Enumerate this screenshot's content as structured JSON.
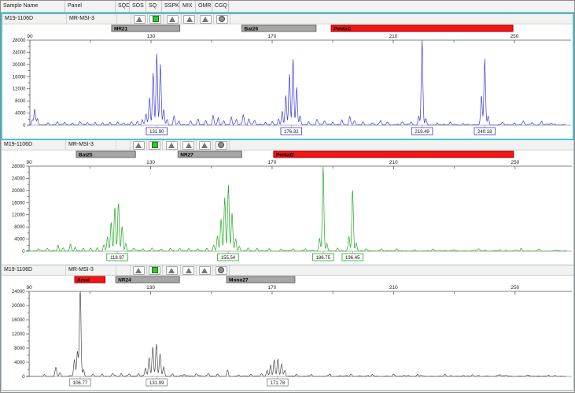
{
  "header": {
    "columns": [
      "Sample Name",
      "Panel",
      "SQD",
      "SOS",
      "SQ",
      "SSPK",
      "MIX",
      "OMR",
      "CGQ"
    ]
  },
  "panels": [
    {
      "sample_name": "M19-1106D",
      "panel_name": "MR-MSI-3",
      "selected": true,
      "flags": [
        {
          "column": "SQD",
          "icon": "blank"
        },
        {
          "column": "SOS",
          "icon": "triangle-icon"
        },
        {
          "column": "SQ",
          "icon": "green-square-icon"
        },
        {
          "column": "SSPK",
          "icon": "triangle-icon"
        },
        {
          "column": "MIX",
          "icon": "triangle-icon"
        },
        {
          "column": "OMR",
          "icon": "triangle-icon"
        },
        {
          "column": "CGQ",
          "icon": "circle-icon"
        }
      ]
    },
    {
      "sample_name": "M19-1106D",
      "panel_name": "MR-MSI-3",
      "selected": false,
      "flags": [
        {
          "column": "SQD",
          "icon": "blank"
        },
        {
          "column": "SOS",
          "icon": "triangle-icon"
        },
        {
          "column": "SQ",
          "icon": "green-square-icon"
        },
        {
          "column": "SSPK",
          "icon": "triangle-icon"
        },
        {
          "column": "MIX",
          "icon": "triangle-icon"
        },
        {
          "column": "OMR",
          "icon": "triangle-icon"
        },
        {
          "column": "CGQ",
          "icon": "circle-icon"
        }
      ]
    },
    {
      "sample_name": "M19-1106D",
      "panel_name": "MR-MSI-3",
      "selected": false,
      "flags": [
        {
          "column": "SQD",
          "icon": "blank"
        },
        {
          "column": "SOS",
          "icon": "triangle-icon"
        },
        {
          "column": "SQ",
          "icon": "green-square-icon"
        },
        {
          "column": "SSPK",
          "icon": "triangle-icon"
        },
        {
          "column": "MIX",
          "icon": "triangle-icon"
        },
        {
          "column": "OMR",
          "icon": "triangle-icon"
        },
        {
          "column": "CGQ",
          "icon": "circle-icon"
        }
      ]
    }
  ],
  "chart_data": [
    {
      "type": "line",
      "trace_color": "#3a3ad0",
      "label_box_color": "#3a3ad0",
      "x_ticks": [
        90,
        130,
        170,
        210,
        250
      ],
      "x_minor_ticks": [
        110,
        150,
        190,
        230
      ],
      "x_range": [
        88,
        268
      ],
      "y_max": 28000,
      "y_tick_step": 4000,
      "markers": [
        {
          "name": "MR21",
          "from": 117,
          "to": 139.5,
          "color": "#a6a6a6",
          "border": "#6b6b6b"
        },
        {
          "name": "Bat26",
          "from": 160,
          "to": 184.5,
          "color": "#a6a6a6",
          "border": "#6b6b6b"
        },
        {
          "name": "PentaC",
          "from": 189.5,
          "to": 249.5,
          "color": "#f21515",
          "border": "#a00000"
        }
      ],
      "called_peaks": [
        {
          "size_label": "131.90",
          "bp": 131.9
        },
        {
          "size_label": "176.32",
          "bp": 176.3
        },
        {
          "size_label": "219.49",
          "bp": 219.5
        },
        {
          "size_label": "240.18",
          "bp": 240.2
        }
      ],
      "noise": [
        [
          89,
          267,
          450
        ]
      ],
      "spikes": [
        [
          90.8,
          1800
        ],
        [
          91.6,
          5200
        ],
        [
          92.5,
          2100
        ],
        [
          96,
          800
        ],
        [
          99,
          900
        ],
        [
          101.5,
          950
        ],
        [
          104,
          800
        ],
        [
          106.5,
          1050
        ],
        [
          109,
          850
        ],
        [
          111.5,
          950
        ],
        [
          114,
          800
        ],
        [
          116.5,
          850
        ],
        [
          119,
          950
        ],
        [
          121,
          800
        ],
        [
          123.5,
          1000
        ],
        [
          125.5,
          1200
        ],
        [
          127.1,
          1600
        ],
        [
          128.3,
          3600
        ],
        [
          129.5,
          9000
        ],
        [
          130.7,
          17000
        ],
        [
          131.9,
          23500
        ],
        [
          133.1,
          20000
        ],
        [
          134.2,
          5200
        ],
        [
          135.3,
          1900
        ],
        [
          137.6,
          2900
        ],
        [
          139.2,
          1300
        ],
        [
          143,
          1300
        ],
        [
          145.5,
          1800
        ],
        [
          148,
          1500
        ],
        [
          150.5,
          3200
        ],
        [
          152.2,
          2300
        ],
        [
          154,
          1500
        ],
        [
          156.5,
          2700
        ],
        [
          158.2,
          1600
        ],
        [
          160.5,
          3100
        ],
        [
          162.3,
          1700
        ],
        [
          164.2,
          1300
        ],
        [
          167.8,
          1000
        ],
        [
          170,
          1200
        ],
        [
          172.1,
          1700
        ],
        [
          173.3,
          4600
        ],
        [
          174.5,
          9800
        ],
        [
          175.7,
          16800
        ],
        [
          176.9,
          21700
        ],
        [
          178.1,
          12200
        ],
        [
          179.2,
          3100
        ],
        [
          182,
          1000
        ],
        [
          184.8,
          1500
        ],
        [
          187.3,
          1100
        ],
        [
          190,
          900
        ],
        [
          193,
          1700
        ],
        [
          195.6,
          2500
        ],
        [
          197.2,
          1300
        ],
        [
          200,
          1000
        ],
        [
          203,
          800
        ],
        [
          205.8,
          1600
        ],
        [
          208,
          900
        ],
        [
          213,
          700
        ],
        [
          216,
          800
        ],
        [
          218.4,
          2600
        ],
        [
          219.5,
          27600
        ],
        [
          220.7,
          2100
        ],
        [
          224.5,
          700
        ],
        [
          228.8,
          900
        ],
        [
          233,
          600
        ],
        [
          239.1,
          9600
        ],
        [
          240.2,
          21800
        ],
        [
          241.3,
          2600
        ],
        [
          246,
          600
        ],
        [
          250,
          800
        ],
        [
          253,
          1000
        ],
        [
          256,
          700
        ],
        [
          259,
          900
        ],
        [
          262,
          600
        ]
      ]
    },
    {
      "type": "line",
      "trace_color": "#21a821",
      "label_box_color": "#21a821",
      "x_ticks": [
        90,
        130,
        170,
        210,
        250
      ],
      "x_minor_ticks": [
        110,
        150,
        190,
        230
      ],
      "x_range": [
        88,
        268
      ],
      "y_max": 28000,
      "y_tick_step": 4000,
      "markers": [
        {
          "name": "Bat25",
          "from": 105.5,
          "to": 125,
          "color": "#a6a6a6",
          "border": "#6b6b6b"
        },
        {
          "name": "NR27",
          "from": 139,
          "to": 160,
          "color": "#a6a6a6",
          "border": "#6b6b6b"
        },
        {
          "name": "PentaD",
          "from": 170.5,
          "to": 249.5,
          "color": "#f21515",
          "border": "#a00000"
        }
      ],
      "called_peaks": [
        {
          "size_label": "118.97",
          "bp": 119.0
        },
        {
          "size_label": "155.54",
          "bp": 155.5
        },
        {
          "size_label": "186.75",
          "bp": 186.8
        },
        {
          "size_label": "196.45",
          "bp": 196.5
        }
      ],
      "noise": [
        [
          89,
          267,
          350
        ]
      ],
      "spikes": [
        [
          93,
          700
        ],
        [
          96,
          900
        ],
        [
          99.5,
          2000
        ],
        [
          101.2,
          1100
        ],
        [
          103.6,
          2400
        ],
        [
          105.2,
          1200
        ],
        [
          107.8,
          900
        ],
        [
          110.2,
          1000
        ],
        [
          112.4,
          1100
        ],
        [
          114.6,
          1900
        ],
        [
          115.8,
          4600
        ],
        [
          117.0,
          9600
        ],
        [
          118.2,
          14600
        ],
        [
          119.4,
          15800
        ],
        [
          120.6,
          8100
        ],
        [
          121.8,
          2600
        ],
        [
          124.5,
          1000
        ],
        [
          127.5,
          800
        ],
        [
          130.5,
          900
        ],
        [
          133.5,
          700
        ],
        [
          136.5,
          800
        ],
        [
          139.5,
          900
        ],
        [
          142.5,
          700
        ],
        [
          145.5,
          800
        ],
        [
          148.5,
          1000
        ],
        [
          150.8,
          1900
        ],
        [
          152.0,
          4900
        ],
        [
          153.2,
          10600
        ],
        [
          154.4,
          17600
        ],
        [
          155.6,
          21800
        ],
        [
          156.8,
          12600
        ],
        [
          158.0,
          4100
        ],
        [
          159.2,
          1600
        ],
        [
          162,
          800
        ],
        [
          165,
          700
        ],
        [
          169,
          800
        ],
        [
          173,
          600
        ],
        [
          177,
          700
        ],
        [
          181,
          800
        ],
        [
          185.6,
          4300
        ],
        [
          186.8,
          27900
        ],
        [
          188.0,
          2300
        ],
        [
          191.5,
          800
        ],
        [
          195.3,
          4900
        ],
        [
          196.5,
          20400
        ],
        [
          197.7,
          2700
        ],
        [
          201,
          600
        ],
        [
          206,
          700
        ],
        [
          211,
          600
        ],
        [
          217,
          500
        ],
        [
          223,
          600
        ],
        [
          230,
          500
        ],
        [
          238,
          600
        ],
        [
          245,
          500
        ],
        [
          252,
          600
        ],
        [
          258,
          500
        ]
      ]
    },
    {
      "type": "line",
      "trace_color": "#4a4a4a",
      "label_box_color": "#808080",
      "x_ticks": [
        90,
        130,
        170,
        210,
        250
      ],
      "x_minor_ticks": [
        110,
        150,
        190,
        230
      ],
      "x_range": [
        88,
        268
      ],
      "y_max": 24000,
      "y_tick_step": 4000,
      "markers": [
        {
          "name": "Amel",
          "from": 105,
          "to": 115,
          "color": "#f21515",
          "border": "#a00000"
        },
        {
          "name": "NR24",
          "from": 118.5,
          "to": 139.5,
          "color": "#a6a6a6",
          "border": "#6b6b6b"
        },
        {
          "name": "Mono27",
          "from": 155,
          "to": 177.5,
          "color": "#a6a6a6",
          "border": "#6b6b6b"
        }
      ],
      "called_peaks": [
        {
          "size_label": "106.77",
          "bp": 106.8
        },
        {
          "size_label": "131.99",
          "bp": 132.0
        },
        {
          "size_label": "171.78",
          "bp": 171.8
        }
      ],
      "noise": [
        [
          89,
          267,
          280
        ]
      ],
      "spikes": [
        [
          95,
          550
        ],
        [
          98.8,
          2400
        ],
        [
          100.2,
          800
        ],
        [
          104.9,
          4800
        ],
        [
          105.9,
          6900
        ],
        [
          106.8,
          24800
        ],
        [
          107.9,
          1900
        ],
        [
          111,
          550
        ],
        [
          114,
          650
        ],
        [
          117.5,
          750
        ],
        [
          120.3,
          850
        ],
        [
          123,
          650
        ],
        [
          126,
          750
        ],
        [
          128.3,
          2200
        ],
        [
          129.5,
          5300
        ],
        [
          130.7,
          8200
        ],
        [
          131.9,
          8900
        ],
        [
          133.1,
          6300
        ],
        [
          134.3,
          2700
        ],
        [
          137.2,
          750
        ],
        [
          141,
          550
        ],
        [
          145,
          650
        ],
        [
          149,
          550
        ],
        [
          152,
          650
        ],
        [
          155.3,
          1800
        ],
        [
          159,
          450
        ],
        [
          163,
          550
        ],
        [
          166.5,
          650
        ],
        [
          168.3,
          1500
        ],
        [
          169.5,
          3200
        ],
        [
          170.7,
          4500
        ],
        [
          171.9,
          4900
        ],
        [
          173.1,
          3500
        ],
        [
          174.2,
          1700
        ],
        [
          178,
          550
        ],
        [
          183,
          450
        ],
        [
          189,
          500
        ],
        [
          196,
          450
        ],
        [
          203,
          500
        ],
        [
          210,
          450
        ],
        [
          218,
          400
        ],
        [
          227,
          450
        ],
        [
          236,
          400
        ],
        [
          245,
          450
        ],
        [
          254,
          400
        ],
        [
          261,
          350
        ]
      ]
    }
  ]
}
